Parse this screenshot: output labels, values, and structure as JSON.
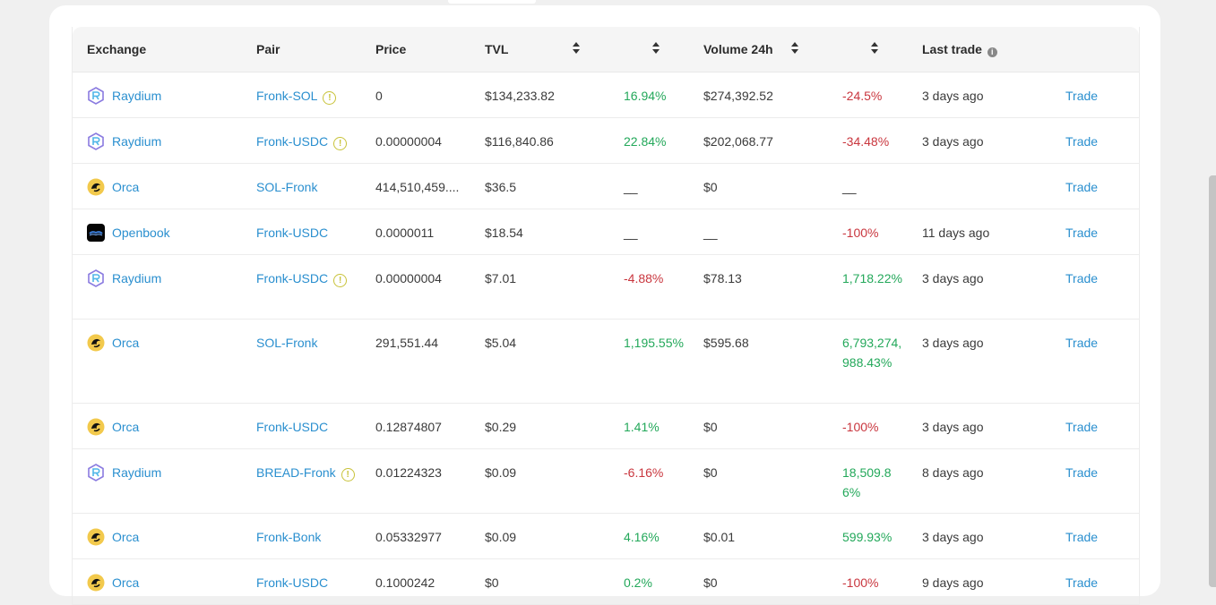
{
  "columns": {
    "exchange": "Exchange",
    "pair": "Pair",
    "price": "Price",
    "tvl": "TVL",
    "change": "",
    "volume": "Volume 24h",
    "vol_change": "",
    "last_trade": "Last trade",
    "info_glyph": "i"
  },
  "colors": {
    "link": "#2a8fcf",
    "positive": "#23a85a",
    "negative": "#c9363e",
    "warning": "#c8c238"
  },
  "rows": [
    {
      "exchange": "Raydium",
      "icon": "raydium-logo-icon",
      "pair": "Fronk-SOL",
      "warn": "!",
      "price": "0",
      "tvl": "$134,233.82",
      "change": "16.94%",
      "volume": "$274,392.52",
      "vol_change": "-24.5%",
      "last": "3 days ago",
      "action": "Trade"
    },
    {
      "exchange": "Raydium",
      "icon": "raydium-logo-icon",
      "pair": "Fronk-USDC",
      "warn": "!",
      "price": "0.00000004",
      "tvl": "$116,840.86",
      "change": "22.84%",
      "volume": "$202,068.77",
      "vol_change": "-34.48%",
      "last": "3 days ago",
      "action": "Trade"
    },
    {
      "exchange": "Orca",
      "icon": "orca-logo-icon",
      "pair": "SOL-Fronk",
      "warn": "",
      "price": "414,510,459....",
      "tvl": "$36.5",
      "change": "__",
      "volume": "$0",
      "vol_change": "__",
      "last": "",
      "action": "Trade"
    },
    {
      "exchange": "Openbook",
      "icon": "openbook-logo-icon",
      "pair": "Fronk-USDC",
      "warn": "",
      "price": "0.0000011",
      "tvl": "$18.54",
      "change": "__",
      "volume": "__",
      "vol_change": "-100%",
      "last": "11 days ago",
      "action": "Trade"
    },
    {
      "exchange": "Raydium",
      "icon": "raydium-logo-icon",
      "pair": "Fronk-USDC",
      "warn": "!",
      "price": "0.00000004",
      "tvl": "$7.01",
      "change": "-4.88%",
      "volume": "$78.13",
      "vol_change": "1,718.22%",
      "last": "3 days ago",
      "action": "Trade"
    },
    {
      "exchange": "Orca",
      "icon": "orca-logo-icon",
      "pair": "SOL-Fronk",
      "warn": "",
      "price": "291,551.44",
      "tvl": "$5.04",
      "change": "1,195.55%",
      "volume": "$595.68",
      "vol_change": "6,793,274,988.43%",
      "last": "3 days ago",
      "action": "Trade"
    },
    {
      "exchange": "Orca",
      "icon": "orca-logo-icon",
      "pair": "Fronk-USDC",
      "warn": "",
      "price": "0.12874807",
      "tvl": "$0.29",
      "change": "1.41%",
      "volume": "$0",
      "vol_change": "-100%",
      "last": "3 days ago",
      "action": "Trade"
    },
    {
      "exchange": "Raydium",
      "icon": "raydium-logo-icon",
      "pair": "BREAD-Fronk",
      "warn": "!",
      "price": "0.01224323",
      "tvl": "$0.09",
      "change": "-6.16%",
      "volume": "$0",
      "vol_change": "18,509.86%",
      "last": "8 days ago",
      "action": "Trade"
    },
    {
      "exchange": "Orca",
      "icon": "orca-logo-icon",
      "pair": "Fronk-Bonk",
      "warn": "",
      "price": "0.05332977",
      "tvl": "$0.09",
      "change": "4.16%",
      "volume": "$0.01",
      "vol_change": "599.93%",
      "last": "3 days ago",
      "action": "Trade"
    },
    {
      "exchange": "Orca",
      "icon": "orca-logo-icon",
      "pair": "Fronk-USDC",
      "warn": "",
      "price": "0.1000242",
      "tvl": "$0",
      "change": "0.2%",
      "volume": "$0",
      "vol_change": "-100%",
      "last": "9 days ago",
      "action": "Trade"
    }
  ]
}
